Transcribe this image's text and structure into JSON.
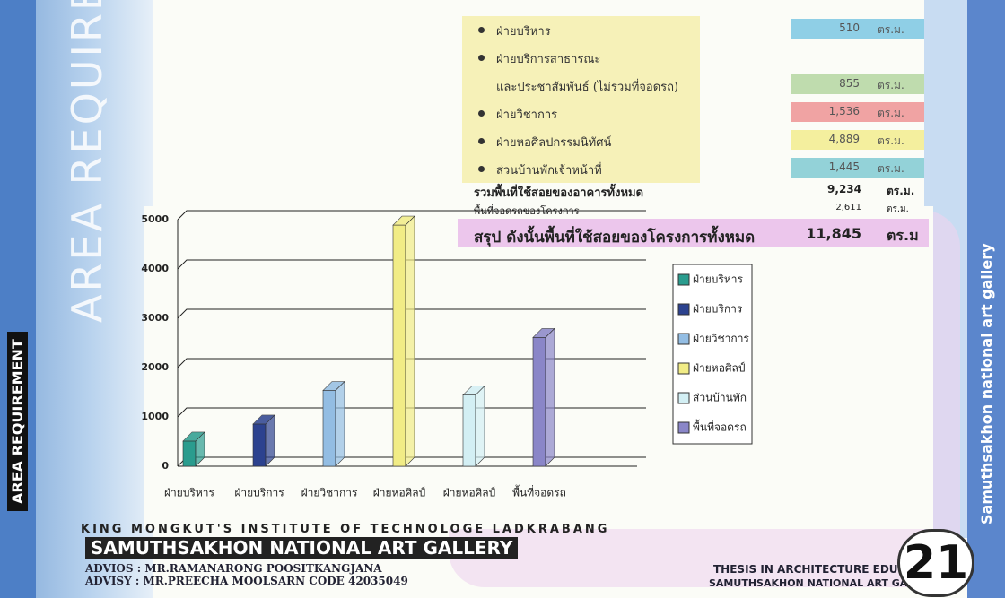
{
  "side_title": "AREA REQUIREMENT",
  "side_label": "AREA REQUIREMENT",
  "right_label": "Samuthsakhon national art gallery",
  "area_list": [
    {
      "label": "ฝ่ายบริหาร",
      "value": "510",
      "unit": "ตร.ม.",
      "color": "#8fcfe6"
    },
    {
      "label": "ฝ่ายบริการสาธารณะ"
    },
    {
      "label": "และประชาสัมพันธ์ (ไม่รวมที่จอดรถ)",
      "value": "855",
      "unit": "ตร.ม.",
      "color": "#bfdcae"
    },
    {
      "label": "ฝ่ายวิชาการ",
      "value": "1,536",
      "unit": "ตร.ม.",
      "color": "#f0a3a3"
    },
    {
      "label": "ฝ่ายหอศิลปกรรมนิทัศน์",
      "value": "4,889",
      "unit": "ตร.ม.",
      "color": "#f4ef9e"
    },
    {
      "label": "ส่วนบ้านพักเจ้าหน้าที่",
      "value": "1,445",
      "unit": "ตร.ม.",
      "color": "#93d2d8"
    }
  ],
  "total": {
    "label": "รวมพื้นที่ใช้สอยของอาคารทั้งหมด",
    "value": "9,234",
    "unit": "ตร.ม."
  },
  "parking": {
    "label": "พื้นที่จอดรถของโครงการ",
    "value": "2,611",
    "unit": "ตร.ม."
  },
  "summary": {
    "label": "สรุป ดังนั้นพื้นที่ใช้สอยของโครงการทั้งหมด",
    "value": "11,845",
    "unit": "ตร.ม"
  },
  "chart_data": {
    "type": "bar3d",
    "categories": [
      "ฝ่ายบริหาร",
      "ฝ่ายบริการ",
      "ฝ่ายวิชาการ",
      "ฝ่ายหอศิลป์",
      "ฝ่ายหอศิลป์",
      "พื้นที่จอดรถ"
    ],
    "series": [
      {
        "name": "ฝ่ายบริหาร",
        "color": "#2a9c8e",
        "values": [
          510,
          null,
          null,
          null,
          null,
          null
        ]
      },
      {
        "name": "ฝ่ายบริการ",
        "color": "#2c428f",
        "values": [
          null,
          855,
          null,
          null,
          null,
          null
        ]
      },
      {
        "name": "ฝ่ายวิชาการ",
        "color": "#93bde3",
        "values": [
          null,
          null,
          1536,
          null,
          null,
          null
        ]
      },
      {
        "name": "ฝ่ายหอศิลป์",
        "color": "#f1ec86",
        "values": [
          null,
          null,
          null,
          4889,
          null,
          null
        ]
      },
      {
        "name": "ส่วนบ้านพัก",
        "color": "#d3eff4",
        "values": [
          null,
          null,
          null,
          null,
          1445,
          null
        ]
      },
      {
        "name": "พื้นที่จอดรถ",
        "color": "#8a86c8",
        "values": [
          null,
          null,
          null,
          null,
          null,
          2611
        ]
      }
    ],
    "ylim": [
      0,
      5000
    ],
    "yticks": [
      0,
      1000,
      2000,
      3000,
      4000,
      5000
    ],
    "grid": true,
    "legend": "right"
  },
  "footer": {
    "institute": "KING MONGKUT'S INSTITUTE OF TECHNOLOGE LADKRABANG",
    "project": "SAMUTHSAKHON NATIONAL ART GALLERY",
    "advisor1": "ADVIOS : MR.RAMANARONG POOSITKANGJANA",
    "advisor2": "ADVISY : MR.PREECHA MOOLSARN CODE 42035049",
    "thesis": "THESIS IN ARCHITECTURE EDUCATION",
    "thesis_project": "SAMUTHSAKHON NATIONAL ART GALLERY",
    "page": "21"
  }
}
